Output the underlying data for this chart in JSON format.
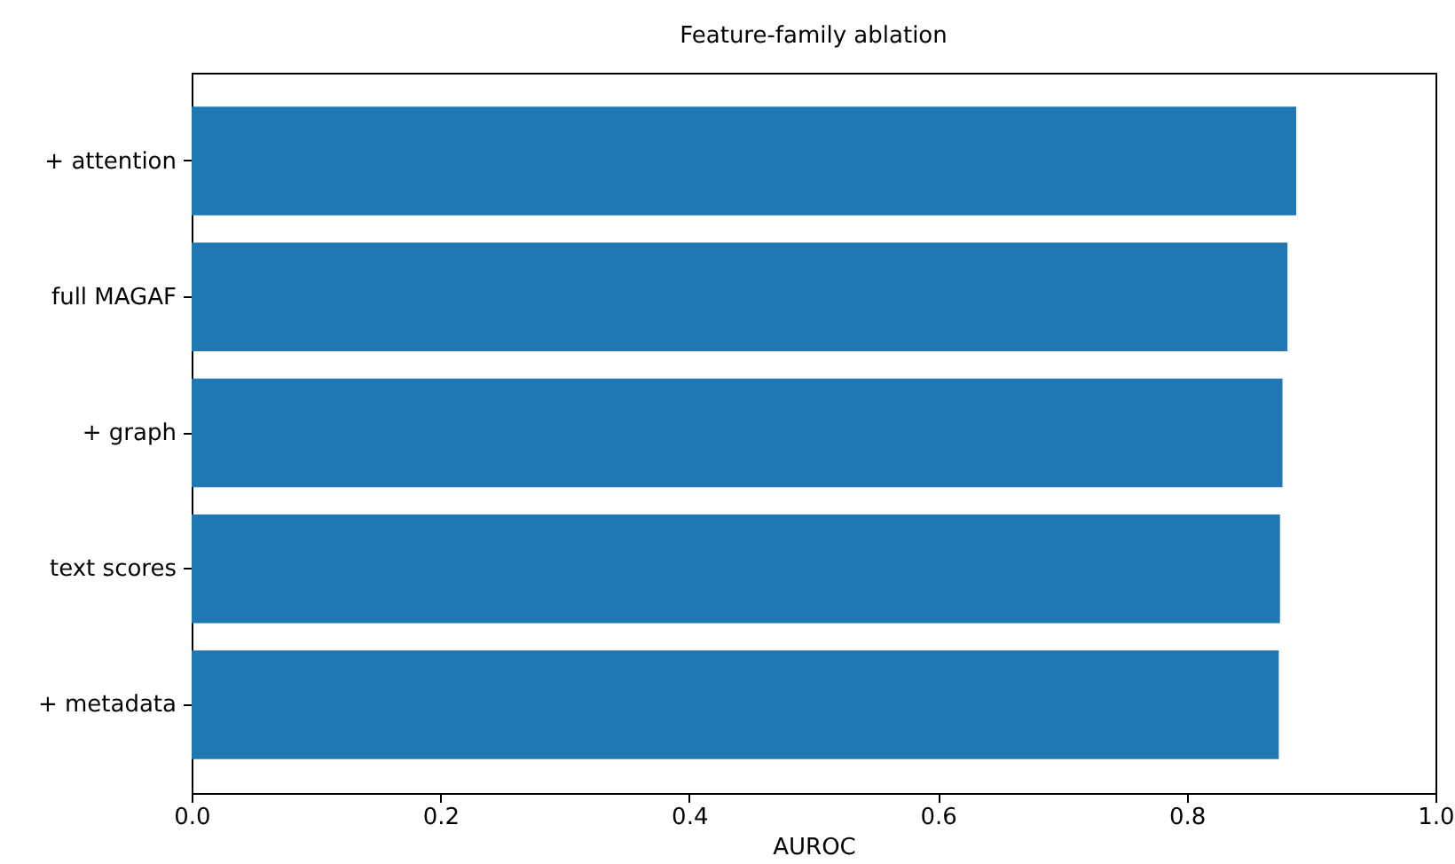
{
  "chart_data": {
    "type": "bar",
    "orientation": "horizontal",
    "title": "Feature-family ablation",
    "xlabel": "AUROC",
    "categories": [
      "+ attention",
      "full MAGAF",
      "+ graph",
      "text scores",
      "+ metadata"
    ],
    "values": [
      0.888,
      0.881,
      0.877,
      0.875,
      0.874
    ],
    "color": "#1f77b4",
    "xlim": [
      0,
      1
    ],
    "xticks": [
      {
        "value": 0,
        "label": "0.0"
      },
      {
        "value": 0.2,
        "label": "0.2"
      },
      {
        "value": 0.4,
        "label": "0.4"
      },
      {
        "value": 0.6,
        "label": "0.6"
      },
      {
        "value": 0.8,
        "label": "0.8"
      },
      {
        "value": 1,
        "label": "1.0"
      }
    ],
    "grid": false
  }
}
